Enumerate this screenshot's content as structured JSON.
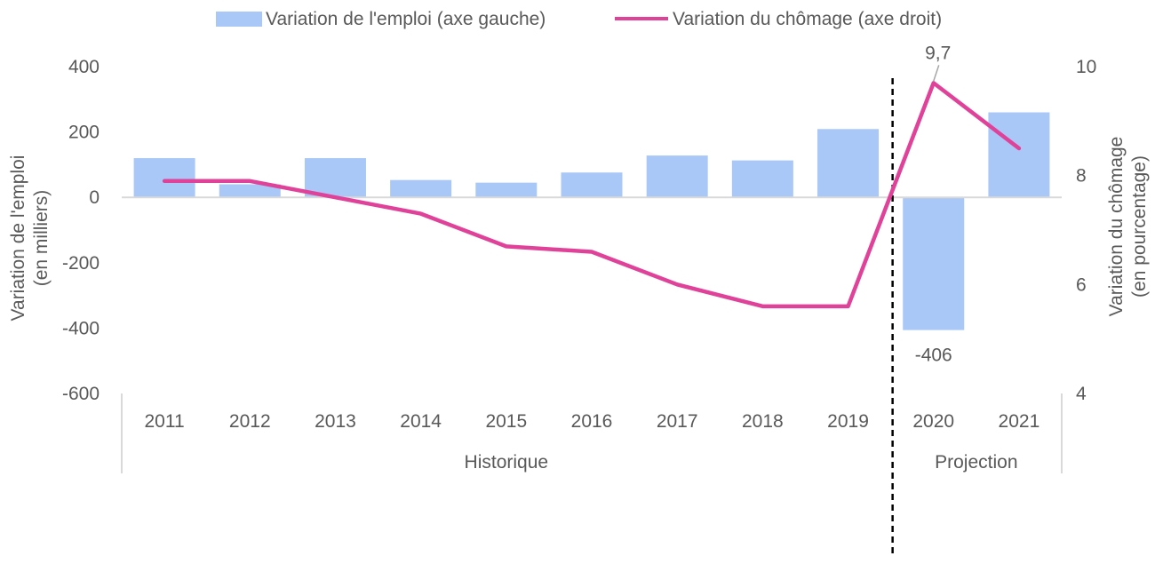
{
  "chart_data": {
    "type": "bar+line",
    "categories": [
      "2011",
      "2012",
      "2013",
      "2014",
      "2015",
      "2016",
      "2017",
      "2018",
      "2019",
      "2020",
      "2021"
    ],
    "groups": [
      {
        "label": "Historique",
        "categories": [
          "2011",
          "2012",
          "2013",
          "2014",
          "2015",
          "2016",
          "2017",
          "2018",
          "2019"
        ]
      },
      {
        "label": "Projection",
        "categories": [
          "2020",
          "2021"
        ]
      }
    ],
    "series": [
      {
        "name": "Variation de l'emploi (axe gauche)",
        "type": "bar",
        "axis": "left",
        "color": "#a9c8f7",
        "values": [
          120,
          40,
          120,
          53,
          45,
          76,
          128,
          113,
          209,
          -406,
          260
        ]
      },
      {
        "name": "Variation du chômage (axe droit)",
        "type": "line",
        "axis": "right",
        "color": "#e0429a",
        "values": [
          7.9,
          7.9,
          7.6,
          7.3,
          6.7,
          6.6,
          6.0,
          5.6,
          5.6,
          9.7,
          8.5
        ]
      }
    ],
    "left_axis": {
      "label_line1": "Variation de l'emploi",
      "label_line2": "(en milliers)",
      "ylim": [
        -600,
        400
      ],
      "ticks": [
        "400",
        "200",
        "0",
        "-200",
        "-400",
        "-600"
      ],
      "tick_values": [
        400,
        200,
        0,
        -200,
        -400,
        -600
      ]
    },
    "right_axis": {
      "label_line1": "Variation du chômage",
      "label_line2": "(en pourcentage)",
      "ylim": [
        4,
        10
      ],
      "ticks": [
        "10",
        "8",
        "6",
        "4"
      ],
      "tick_values": [
        10,
        8,
        6,
        4
      ]
    },
    "annotations": [
      {
        "text": "-406",
        "series": 0,
        "index": 9
      },
      {
        "text": "9,7",
        "series": 1,
        "index": 9
      }
    ],
    "divider": {
      "style": "dashed",
      "between": [
        "2019",
        "2020"
      ]
    },
    "legend_position": "top",
    "grid": false
  }
}
